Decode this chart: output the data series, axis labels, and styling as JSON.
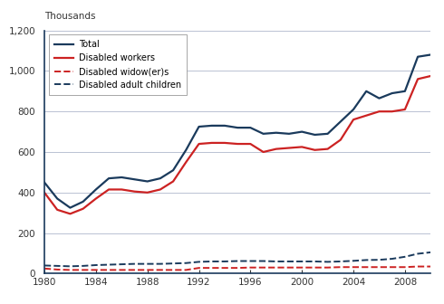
{
  "years": [
    1980,
    1981,
    1982,
    1983,
    1984,
    1985,
    1986,
    1987,
    1988,
    1989,
    1990,
    1991,
    1992,
    1993,
    1994,
    1995,
    1996,
    1997,
    1998,
    1999,
    2000,
    2001,
    2002,
    2003,
    2004,
    2005,
    2006,
    2007,
    2008,
    2009,
    2010
  ],
  "total": [
    450,
    370,
    325,
    355,
    415,
    470,
    475,
    465,
    455,
    470,
    510,
    610,
    725,
    730,
    730,
    720,
    720,
    690,
    695,
    690,
    700,
    685,
    690,
    750,
    810,
    900,
    865,
    890,
    900,
    1070,
    1080
  ],
  "disabled_workers": [
    400,
    315,
    295,
    320,
    370,
    415,
    415,
    405,
    400,
    415,
    455,
    550,
    640,
    645,
    645,
    640,
    640,
    600,
    615,
    620,
    625,
    610,
    615,
    660,
    760,
    780,
    800,
    800,
    810,
    960,
    975
  ],
  "disabled_widows": [
    25,
    20,
    18,
    18,
    18,
    18,
    18,
    18,
    18,
    18,
    18,
    18,
    28,
    28,
    28,
    28,
    30,
    30,
    30,
    30,
    30,
    30,
    30,
    32,
    32,
    32,
    32,
    32,
    32,
    35,
    35
  ],
  "disabled_children": [
    40,
    38,
    36,
    38,
    42,
    44,
    46,
    48,
    48,
    48,
    50,
    52,
    58,
    60,
    60,
    62,
    62,
    62,
    60,
    60,
    60,
    60,
    58,
    60,
    63,
    67,
    68,
    73,
    83,
    98,
    105
  ],
  "total_color": "#1a3a5c",
  "workers_color": "#cc2222",
  "widows_color": "#cc2222",
  "children_color": "#1a3a5c",
  "ylabel": "Thousands",
  "ylim": [
    0,
    1200
  ],
  "yticks": [
    0,
    200,
    400,
    600,
    800,
    1000,
    1200
  ],
  "xticks": [
    1980,
    1984,
    1988,
    1992,
    1996,
    2000,
    2004,
    2008
  ],
  "bg_color": "#ffffff",
  "grid_color": "#b0b8cc",
  "legend_labels": [
    "Total",
    "Disabled workers",
    "Disabled widow(er)s",
    "Disabled adult children"
  ]
}
